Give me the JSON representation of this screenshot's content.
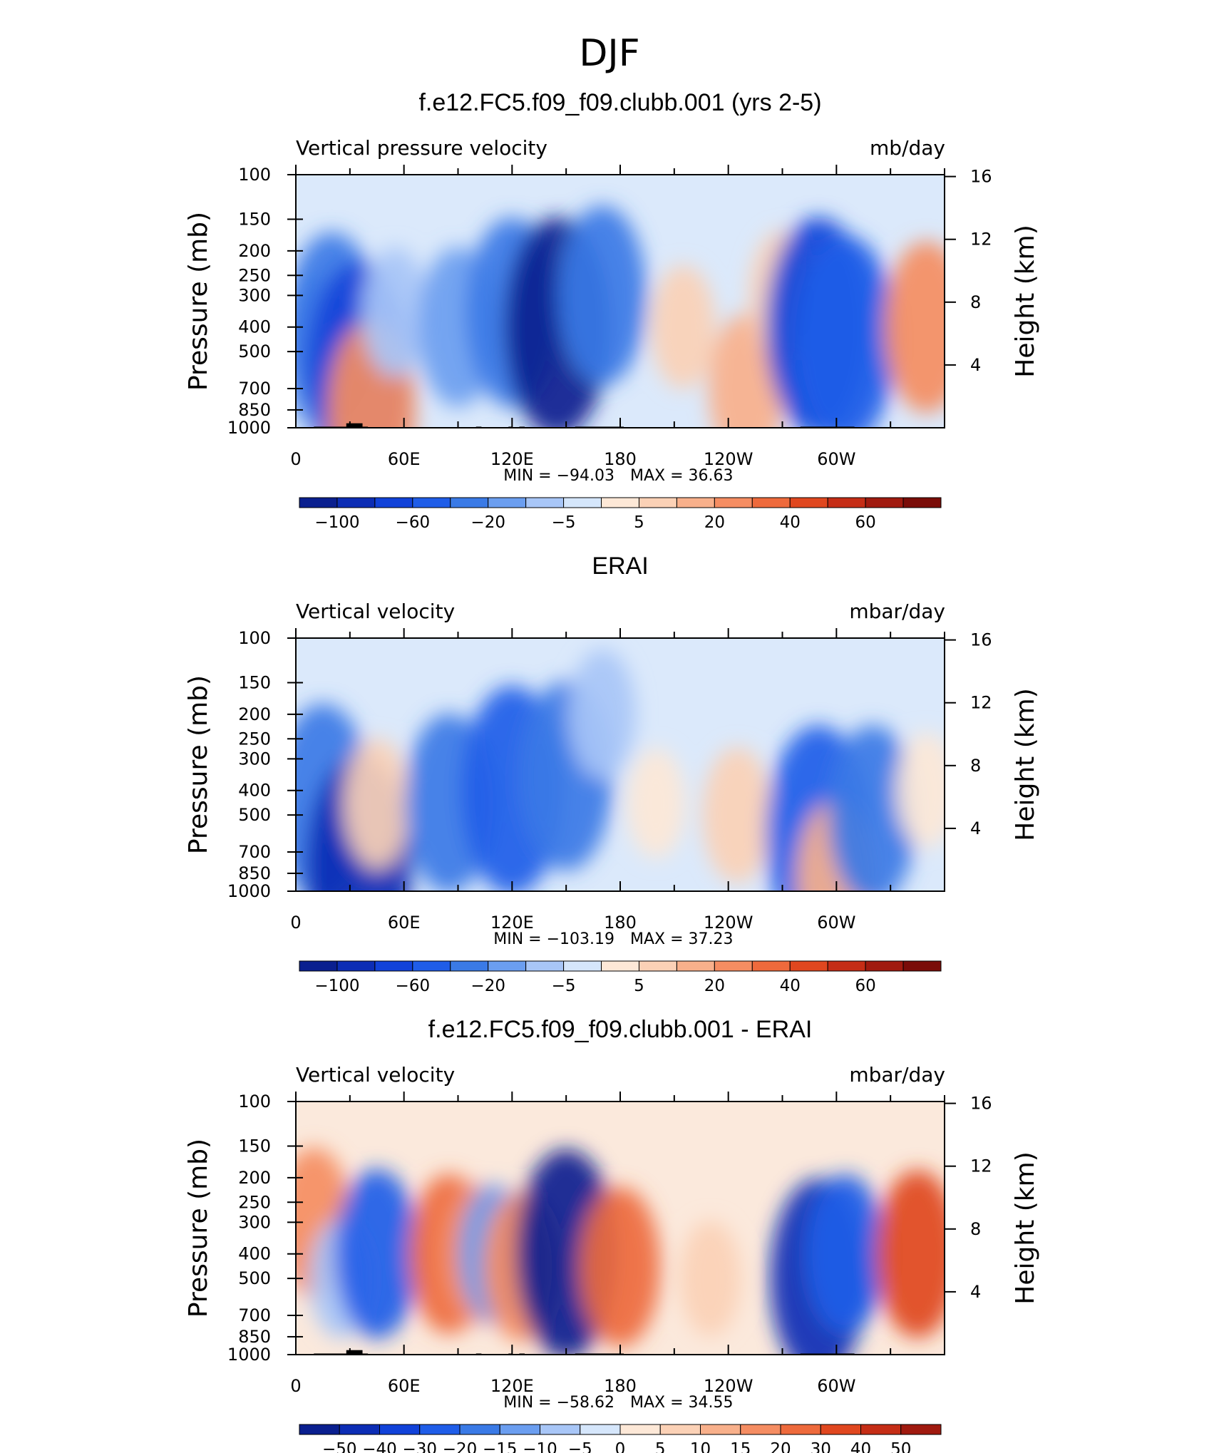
{
  "figure": {
    "title": "DJF"
  },
  "chart_data": [
    {
      "type": "heatmap",
      "title": "f.e12.FC5.f09_f09.clubb.001 (yrs 2-5)",
      "left_label": "Vertical pressure velocity",
      "units": "mb/day",
      "ylabel": "Pressure (mb)",
      "y2label": "Height (km)",
      "x_ticks": [
        "0",
        "60E",
        "120E",
        "180",
        "120W",
        "60W"
      ],
      "x_tick_lon": [
        0,
        60,
        120,
        180,
        240,
        300
      ],
      "xlim": [
        0,
        360
      ],
      "y_ticks": [
        "100",
        "150",
        "200",
        "250",
        "300",
        "400",
        "500",
        "700",
        "850",
        "1000"
      ],
      "y_tick_p": [
        100,
        150,
        200,
        250,
        300,
        400,
        500,
        700,
        850,
        1000
      ],
      "ylim": [
        1000,
        100
      ],
      "y_scale": "log",
      "y2_ticks": [
        "16",
        "12",
        "8",
        "4"
      ],
      "y2_tick_km": [
        16,
        12,
        8,
        4
      ],
      "min_text": "MIN =  −94.03",
      "max_text": "MAX =   36.63",
      "min": -94.03,
      "max": 36.63,
      "colorbar_labels": [
        "−100",
        "−60",
        "−20",
        "−5",
        "5",
        "20",
        "40",
        "60"
      ],
      "field": [
        {
          "lon": 10,
          "p": 500,
          "value": -25
        },
        {
          "lon": 20,
          "p": 400,
          "value": -45
        },
        {
          "lon": 35,
          "p": 600,
          "value": -70
        },
        {
          "lon": 42,
          "p": 850,
          "value": 40
        },
        {
          "lon": 55,
          "p": 350,
          "value": -15
        },
        {
          "lon": 90,
          "p": 400,
          "value": -30
        },
        {
          "lon": 120,
          "p": 350,
          "value": -45
        },
        {
          "lon": 145,
          "p": 400,
          "value": -94
        },
        {
          "lon": 170,
          "p": 300,
          "value": -40
        },
        {
          "lon": 215,
          "p": 400,
          "value": 12
        },
        {
          "lon": 250,
          "p": 700,
          "value": 25
        },
        {
          "lon": 270,
          "p": 300,
          "value": 15
        },
        {
          "lon": 290,
          "p": 400,
          "value": -65
        },
        {
          "lon": 305,
          "p": 450,
          "value": -55
        },
        {
          "lon": 350,
          "p": 400,
          "value": 36
        }
      ]
    },
    {
      "type": "heatmap",
      "title": "ERAI",
      "left_label": "Vertical velocity",
      "units": "mbar/day",
      "ylabel": "Pressure (mb)",
      "y2label": "Height (km)",
      "x_ticks": [
        "0",
        "60E",
        "120E",
        "180",
        "120W",
        "60W"
      ],
      "x_tick_lon": [
        0,
        60,
        120,
        180,
        240,
        300
      ],
      "xlim": [
        0,
        360
      ],
      "y_ticks": [
        "100",
        "150",
        "200",
        "250",
        "300",
        "400",
        "500",
        "700",
        "850",
        "1000"
      ],
      "y_tick_p": [
        100,
        150,
        200,
        250,
        300,
        400,
        500,
        700,
        850,
        1000
      ],
      "ylim": [
        1000,
        100
      ],
      "y_scale": "log",
      "y2_ticks": [
        "16",
        "12",
        "8",
        "4"
      ],
      "y2_tick_km": [
        16,
        12,
        8,
        4
      ],
      "min_text": "MIN =  −103.19",
      "max_text": "MAX =   37.23",
      "min": -103.19,
      "max": 37.23,
      "colorbar_labels": [
        "−100",
        "−60",
        "−20",
        "−5",
        "5",
        "20",
        "40",
        "60"
      ],
      "field": [
        {
          "lon": 15,
          "p": 450,
          "value": -50
        },
        {
          "lon": 35,
          "p": 800,
          "value": -80
        },
        {
          "lon": 45,
          "p": 450,
          "value": 15
        },
        {
          "lon": 85,
          "p": 450,
          "value": -40
        },
        {
          "lon": 120,
          "p": 400,
          "value": -55
        },
        {
          "lon": 150,
          "p": 350,
          "value": -45
        },
        {
          "lon": 170,
          "p": 200,
          "value": -15
        },
        {
          "lon": 200,
          "p": 450,
          "value": 5
        },
        {
          "lon": 245,
          "p": 500,
          "value": 18
        },
        {
          "lon": 290,
          "p": 600,
          "value": -60
        },
        {
          "lon": 300,
          "p": 900,
          "value": 30
        },
        {
          "lon": 320,
          "p": 500,
          "value": -40
        },
        {
          "lon": 350,
          "p": 400,
          "value": 8
        }
      ]
    },
    {
      "type": "heatmap",
      "title": "f.e12.FC5.f09_f09.clubb.001 - ERAI",
      "left_label": "Vertical velocity",
      "units": "mbar/day",
      "ylabel": "Pressure (mb)",
      "y2label": "Height (km)",
      "x_ticks": [
        "0",
        "60E",
        "120E",
        "180",
        "120W",
        "60W"
      ],
      "x_tick_lon": [
        0,
        60,
        120,
        180,
        240,
        300
      ],
      "xlim": [
        0,
        360
      ],
      "y_ticks": [
        "100",
        "150",
        "200",
        "250",
        "300",
        "400",
        "500",
        "700",
        "850",
        "1000"
      ],
      "y_tick_p": [
        100,
        150,
        200,
        250,
        300,
        400,
        500,
        700,
        850,
        1000
      ],
      "ylim": [
        1000,
        100
      ],
      "y_scale": "log",
      "y2_ticks": [
        "16",
        "12",
        "8",
        "4"
      ],
      "y2_tick_km": [
        16,
        12,
        8,
        4
      ],
      "min_text": "MIN =  −58.62",
      "max_text": "MAX =   34.55",
      "min": -58.62,
      "max": 34.55,
      "colorbar_labels": [
        "−50",
        "−40",
        "−30",
        "−20",
        "−15",
        "−10",
        "−5",
        "0",
        "5",
        "10",
        "15",
        "20",
        "30",
        "40",
        "50"
      ],
      "field": [
        {
          "lon": 10,
          "p": 300,
          "value": 25
        },
        {
          "lon": 25,
          "p": 500,
          "value": -10
        },
        {
          "lon": 45,
          "p": 400,
          "value": -35
        },
        {
          "lon": 85,
          "p": 400,
          "value": 30
        },
        {
          "lon": 100,
          "p": 400,
          "value": 20
        },
        {
          "lon": 110,
          "p": 400,
          "value": -20
        },
        {
          "lon": 125,
          "p": 450,
          "value": 25
        },
        {
          "lon": 150,
          "p": 400,
          "value": -55
        },
        {
          "lon": 180,
          "p": 450,
          "value": 30
        },
        {
          "lon": 230,
          "p": 500,
          "value": 8
        },
        {
          "lon": 290,
          "p": 500,
          "value": -50
        },
        {
          "lon": 305,
          "p": 400,
          "value": -30
        },
        {
          "lon": 345,
          "p": 400,
          "value": 34
        }
      ]
    }
  ],
  "colors": {
    "neg_scale": [
      "#0a1f8f",
      "#0c2db5",
      "#1142d9",
      "#1f5de8",
      "#3a7ae6",
      "#6b9ef0",
      "#a8c6f7",
      "#d5e6fb"
    ],
    "pos_scale": [
      "#fde8d7",
      "#fbd1b6",
      "#f8b08b",
      "#f58d62",
      "#ee6a3c",
      "#e0471f",
      "#c52d16",
      "#a01a0f",
      "#7a0c08"
    ],
    "land": "#000000"
  }
}
